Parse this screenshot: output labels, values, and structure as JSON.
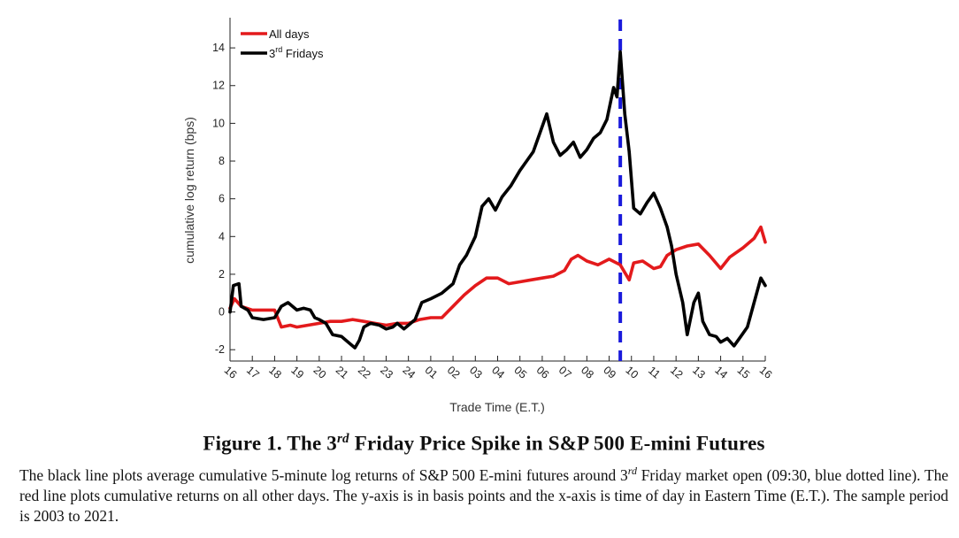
{
  "chart_data": {
    "type": "line",
    "ylabel": "cumulative log return (bps)",
    "xlabel": "Trade Time (E.T.)",
    "ylim": [
      -2.6,
      15.6
    ],
    "yticks": [
      -2,
      0,
      2,
      4,
      6,
      8,
      10,
      12,
      14
    ],
    "xlim": [
      0,
      24
    ],
    "xtick_labels": [
      "16",
      "17",
      "18",
      "19",
      "20",
      "21",
      "22",
      "23",
      "24",
      "01",
      "02",
      "03",
      "04",
      "05",
      "06",
      "07",
      "08",
      "09",
      "10",
      "11",
      "12",
      "13",
      "14",
      "15",
      "16"
    ],
    "vline": {
      "x": 17.5,
      "label": "09:30 market open",
      "color": "#1a1adb"
    },
    "series": [
      {
        "name": "All days",
        "color": "#e31a1c",
        "points": [
          [
            0,
            0.2
          ],
          [
            0.2,
            0.7
          ],
          [
            0.5,
            0.3
          ],
          [
            1,
            0.1
          ],
          [
            1.5,
            0.1
          ],
          [
            2,
            0.1
          ],
          [
            2.3,
            -0.8
          ],
          [
            2.7,
            -0.7
          ],
          [
            3,
            -0.8
          ],
          [
            3.5,
            -0.7
          ],
          [
            4,
            -0.6
          ],
          [
            4.5,
            -0.5
          ],
          [
            5,
            -0.5
          ],
          [
            5.5,
            -0.4
          ],
          [
            6,
            -0.5
          ],
          [
            6.5,
            -0.6
          ],
          [
            7,
            -0.7
          ],
          [
            7.5,
            -0.6
          ],
          [
            8,
            -0.6
          ],
          [
            8.5,
            -0.4
          ],
          [
            9,
            -0.3
          ],
          [
            9.5,
            -0.3
          ],
          [
            10,
            0.3
          ],
          [
            10.5,
            0.9
          ],
          [
            11,
            1.4
          ],
          [
            11.5,
            1.8
          ],
          [
            12,
            1.8
          ],
          [
            12.5,
            1.5
          ],
          [
            13,
            1.6
          ],
          [
            13.5,
            1.7
          ],
          [
            14,
            1.8
          ],
          [
            14.5,
            1.9
          ],
          [
            15,
            2.2
          ],
          [
            15.3,
            2.8
          ],
          [
            15.6,
            3.0
          ],
          [
            16,
            2.7
          ],
          [
            16.5,
            2.5
          ],
          [
            17,
            2.8
          ],
          [
            17.5,
            2.5
          ],
          [
            17.9,
            1.7
          ],
          [
            18.1,
            2.6
          ],
          [
            18.5,
            2.7
          ],
          [
            19,
            2.3
          ],
          [
            19.3,
            2.4
          ],
          [
            19.6,
            3.0
          ],
          [
            20,
            3.3
          ],
          [
            20.5,
            3.5
          ],
          [
            21,
            3.6
          ],
          [
            21.5,
            3.0
          ],
          [
            22,
            2.3
          ],
          [
            22.4,
            2.9
          ],
          [
            23,
            3.4
          ],
          [
            23.5,
            3.9
          ],
          [
            23.8,
            4.5
          ],
          [
            24,
            3.7
          ]
        ]
      },
      {
        "name": "3rd Fridays",
        "color": "#000000",
        "points": [
          [
            0,
            0
          ],
          [
            0.15,
            1.4
          ],
          [
            0.4,
            1.5
          ],
          [
            0.5,
            0.3
          ],
          [
            0.8,
            0.1
          ],
          [
            1,
            -0.3
          ],
          [
            1.5,
            -0.4
          ],
          [
            2,
            -0.3
          ],
          [
            2.3,
            0.3
          ],
          [
            2.6,
            0.5
          ],
          [
            3,
            0.1
          ],
          [
            3.3,
            0.2
          ],
          [
            3.6,
            0.1
          ],
          [
            3.8,
            -0.3
          ],
          [
            4,
            -0.4
          ],
          [
            4.3,
            -0.6
          ],
          [
            4.6,
            -1.2
          ],
          [
            5,
            -1.3
          ],
          [
            5.3,
            -1.6
          ],
          [
            5.6,
            -1.9
          ],
          [
            5.8,
            -1.5
          ],
          [
            6,
            -0.8
          ],
          [
            6.3,
            -0.6
          ],
          [
            6.7,
            -0.7
          ],
          [
            7,
            -0.9
          ],
          [
            7.3,
            -0.8
          ],
          [
            7.5,
            -0.6
          ],
          [
            7.8,
            -0.9
          ],
          [
            8,
            -0.7
          ],
          [
            8.3,
            -0.4
          ],
          [
            8.6,
            0.5
          ],
          [
            9,
            0.7
          ],
          [
            9.5,
            1.0
          ],
          [
            10,
            1.5
          ],
          [
            10.3,
            2.5
          ],
          [
            10.6,
            3.0
          ],
          [
            11,
            4.0
          ],
          [
            11.3,
            5.6
          ],
          [
            11.6,
            6.0
          ],
          [
            11.9,
            5.4
          ],
          [
            12.2,
            6.1
          ],
          [
            12.6,
            6.7
          ],
          [
            13,
            7.5
          ],
          [
            13.3,
            8.0
          ],
          [
            13.6,
            8.5
          ],
          [
            13.9,
            9.5
          ],
          [
            14.2,
            10.5
          ],
          [
            14.5,
            9.0
          ],
          [
            14.8,
            8.3
          ],
          [
            15.1,
            8.6
          ],
          [
            15.4,
            9.0
          ],
          [
            15.7,
            8.2
          ],
          [
            16,
            8.6
          ],
          [
            16.3,
            9.2
          ],
          [
            16.6,
            9.5
          ],
          [
            16.9,
            10.2
          ],
          [
            17.2,
            11.9
          ],
          [
            17.35,
            11.4
          ],
          [
            17.5,
            13.8
          ],
          [
            17.7,
            10.5
          ],
          [
            17.9,
            8.5
          ],
          [
            18.1,
            5.5
          ],
          [
            18.4,
            5.2
          ],
          [
            18.7,
            5.8
          ],
          [
            19,
            6.3
          ],
          [
            19.3,
            5.5
          ],
          [
            19.6,
            4.5
          ],
          [
            19.8,
            3.5
          ],
          [
            20,
            2.0
          ],
          [
            20.3,
            0.5
          ],
          [
            20.5,
            -1.2
          ],
          [
            20.8,
            0.5
          ],
          [
            21,
            1.0
          ],
          [
            21.2,
            -0.5
          ],
          [
            21.5,
            -1.2
          ],
          [
            21.8,
            -1.3
          ],
          [
            22,
            -1.6
          ],
          [
            22.3,
            -1.4
          ],
          [
            22.6,
            -1.8
          ],
          [
            22.9,
            -1.3
          ],
          [
            23.2,
            -0.8
          ],
          [
            23.5,
            0.5
          ],
          [
            23.8,
            1.8
          ],
          [
            24,
            1.4
          ]
        ]
      }
    ],
    "legend": {
      "position": "top-left",
      "entries": [
        "All days",
        "3rd Fridays"
      ]
    }
  },
  "caption": {
    "title_prefix": "Figure 1.  The 3",
    "title_sup": "rd",
    "title_suffix": " Friday Price Spike in S&P 500 E-mini Futures",
    "body_part1": "The black line plots average cumulative 5-minute log returns of S&P 500 E-mini futures around 3",
    "body_sup": "rd",
    "body_part2": " Friday market open (09:30, blue dotted line). The red line plots cumulative returns on all other days. The y-axis is in basis points and the x-axis is time of day in Eastern Time (E.T.). The sample period is 2003 to 2021."
  }
}
